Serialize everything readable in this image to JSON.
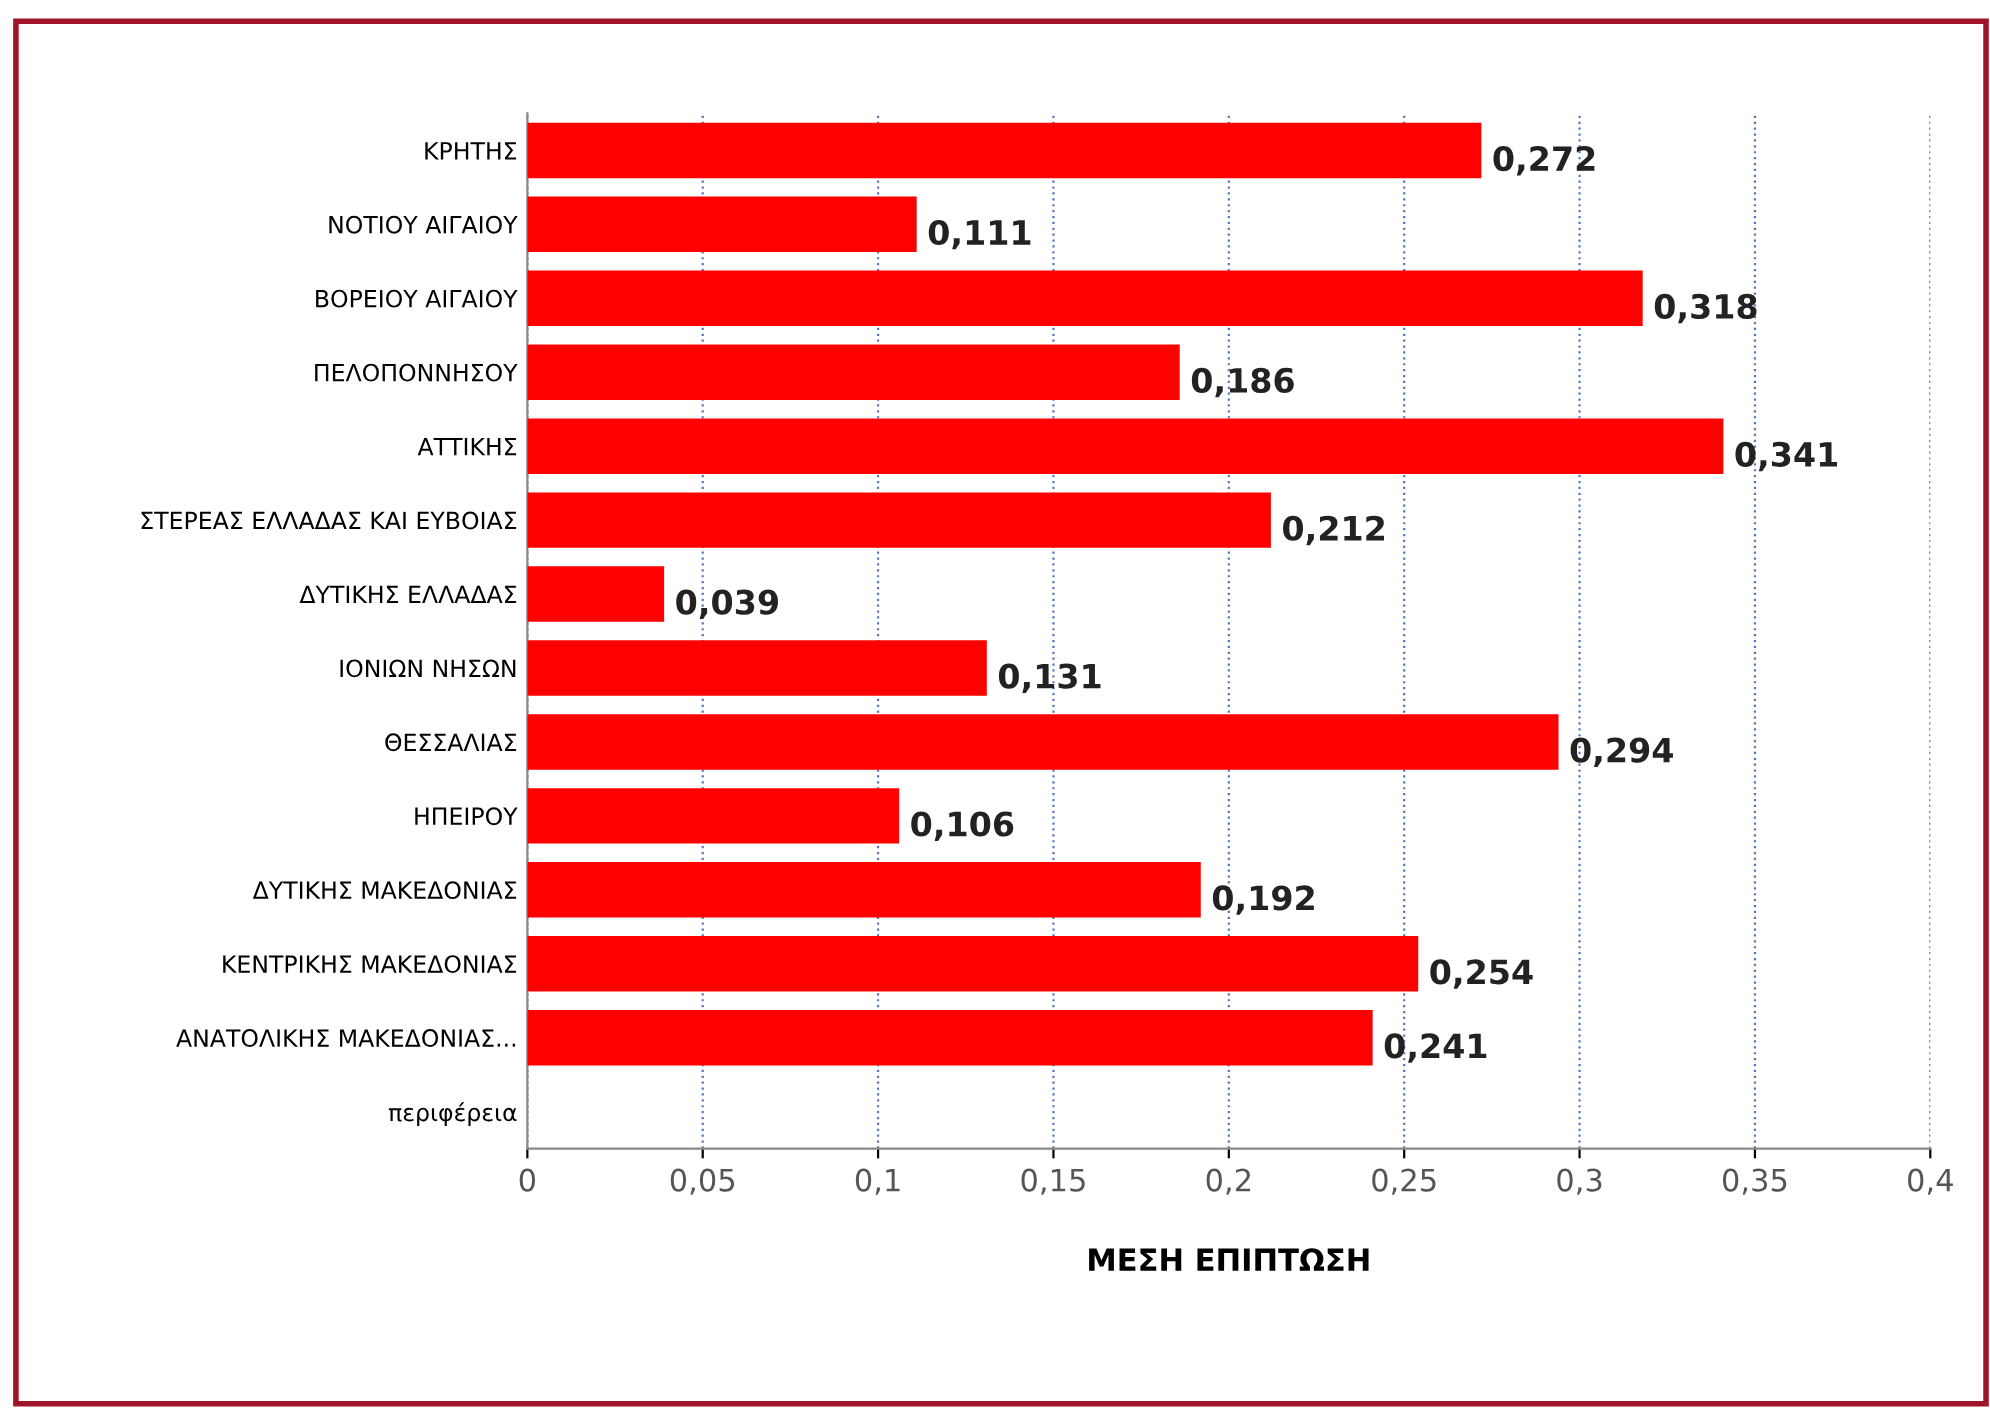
{
  "chart_data": {
    "type": "bar",
    "orientation": "horizontal",
    "xlabel": "ΜΕΣΗ ΕΠΙΠΤΩΣΗ",
    "categories": [
      "ΚΡΗΤΗΣ",
      "ΝΟΤΙΟΥ ΑΙΓΑΙΟΥ",
      "ΒΟΡΕΙΟΥ ΑΙΓΑΙΟΥ",
      "ΠΕΛΟΠΟΝΝΗΣΟΥ",
      "ΑΤΤΙΚΗΣ",
      "ΣΤΕΡΕΑΣ ΕΛΛΑΔΑΣ ΚΑΙ ΕΥΒΟΙΑΣ",
      "ΔΥΤΙΚΗΣ ΕΛΛΑΔΑΣ",
      "ΙΟΝΙΩΝ ΝΗΣΩΝ",
      "ΘΕΣΣΑΛΙΑΣ",
      "ΗΠΕΙΡΟΥ",
      "ΔΥΤΙΚΗΣ ΜΑΚΕΔΟΝΙΑΣ",
      "ΚΕΝΤΡΙΚΗΣ ΜΑΚΕΔΟΝΙΑΣ",
      "ΑΝΑΤΟΛΙΚΗΣ ΜΑΚΕΔΟΝΙΑΣ...",
      "περιφέρεια"
    ],
    "values": [
      0.272,
      0.111,
      0.318,
      0.186,
      0.341,
      0.212,
      0.039,
      0.131,
      0.294,
      0.106,
      0.192,
      0.254,
      0.241,
      null
    ],
    "value_labels": [
      "0,272",
      "0,111",
      "0,318",
      "0,186",
      "0,341",
      "0,212",
      "0,039",
      "0,131",
      "0,294",
      "0,106",
      "0,192",
      "0,254",
      "0,241",
      null
    ],
    "color": "#ff0000",
    "xlim": [
      0,
      0.4
    ],
    "xticks": [
      0,
      {
        "value": 0.05,
        "label": "0,05"
      },
      {
        "value": 0.1,
        "label": "0,1"
      },
      {
        "value": 0.15,
        "label": "0,15"
      },
      {
        "value": 0.2,
        "label": "0,2"
      },
      {
        "value": 0.25,
        "label": "0,25"
      },
      {
        "value": 0.3,
        "label": "0,3"
      },
      {
        "value": 0.35,
        "label": "0,35"
      },
      {
        "value": 0.4,
        "label": "0,4"
      }
    ],
    "grid": "x"
  }
}
